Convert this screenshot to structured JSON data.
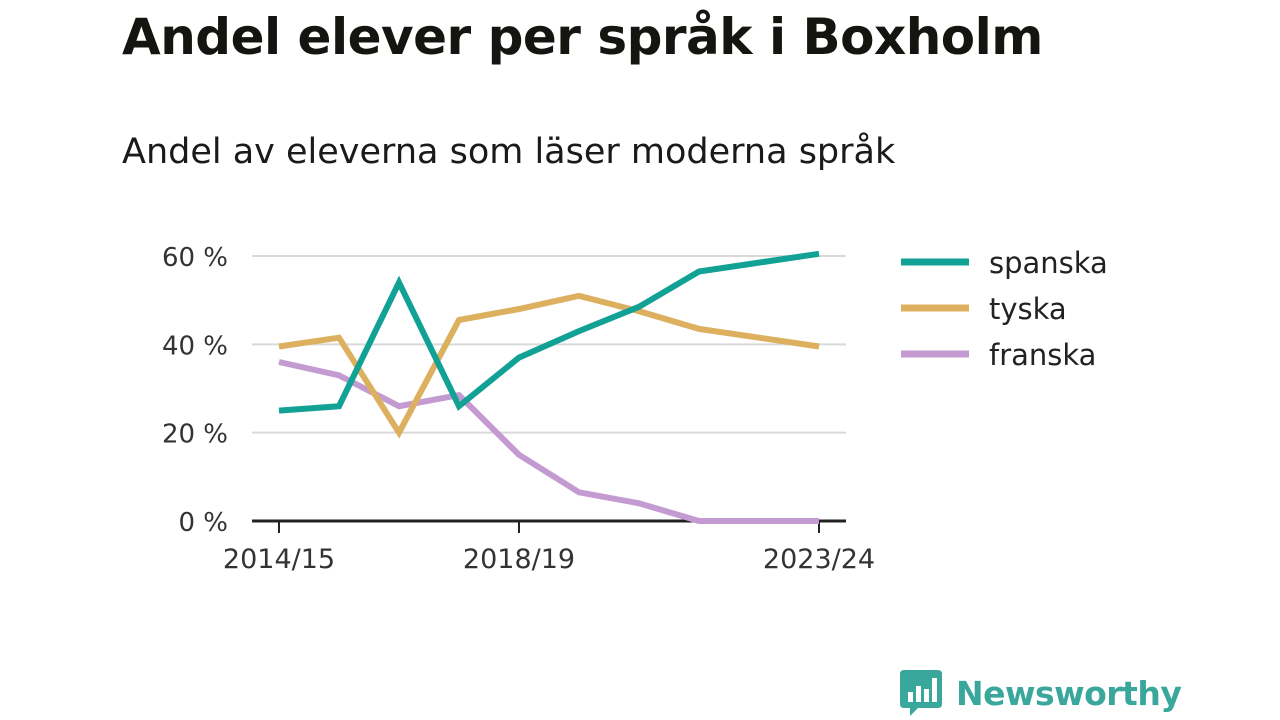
{
  "title": "Andel elever per språk i Boxholm",
  "subtitle": "Andel av eleverna som läser moderna språk",
  "brand": {
    "name": "Newsworthy",
    "color": "#3aa79d"
  },
  "chart_data": {
    "type": "line",
    "x": [
      "2014/15",
      "2015/16",
      "2016/17",
      "2017/18",
      "2018/19",
      "2019/20",
      "2020/21",
      "2021/22",
      "2022/23",
      "2023/24"
    ],
    "x_tick_labels": [
      "2014/15",
      "2018/19",
      "2023/24"
    ],
    "y_ticks": [
      0,
      20,
      40,
      60
    ],
    "y_tick_labels": [
      "0 %",
      "20 %",
      "40 %",
      "60 %"
    ],
    "ylim": [
      0,
      60
    ],
    "grid": true,
    "legend_position": "right",
    "series": [
      {
        "name": "spanska",
        "color": "#12a195",
        "values": [
          25,
          26,
          54,
          26,
          37,
          43,
          48.5,
          56.5,
          58.5,
          60.5
        ]
      },
      {
        "name": "tyska",
        "color": "#dcb05f",
        "values": [
          39.5,
          41.5,
          20,
          45.5,
          48,
          51,
          47.5,
          43.5,
          41.5,
          39.5
        ]
      },
      {
        "name": "franska",
        "color": "#c49bd0",
        "values": [
          36,
          33,
          26,
          28.5,
          15,
          6.5,
          4,
          0,
          0,
          0
        ]
      }
    ]
  }
}
